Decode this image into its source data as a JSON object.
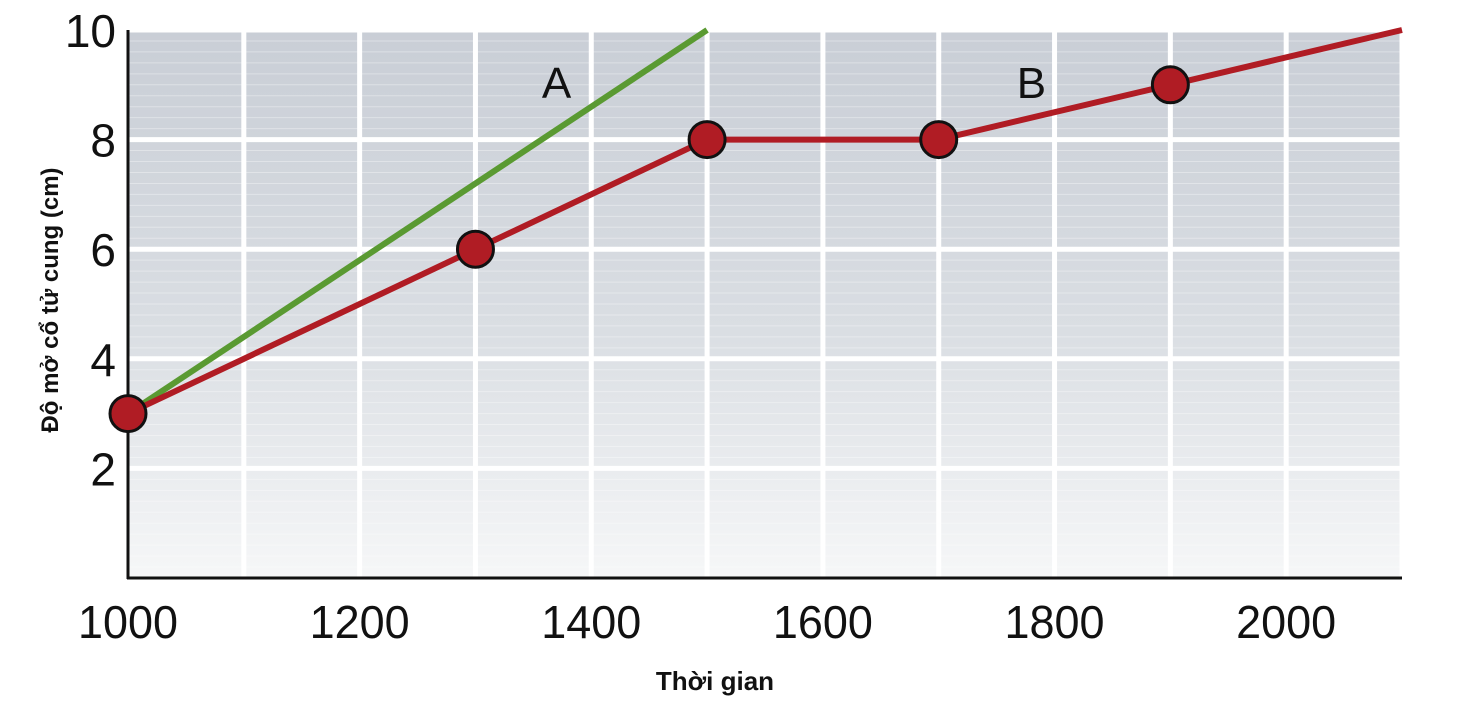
{
  "chart_data": {
    "type": "line",
    "title": "",
    "xlabel": "Thời gian",
    "ylabel": "Độ mở cổ tử cung (cm)",
    "xlim": [
      1000,
      2100
    ],
    "ylim": [
      0,
      10
    ],
    "x_ticks": [
      1000,
      1200,
      1400,
      1600,
      1800,
      2000
    ],
    "x_tick_labels": [
      "1000",
      "1200",
      "1400",
      "1600",
      "1800",
      "2000"
    ],
    "y_ticks": [
      2,
      4,
      6,
      8,
      10
    ],
    "y_tick_labels": [
      "2",
      "4",
      "6",
      "8",
      "10"
    ],
    "grid": true,
    "legend": "none",
    "series": [
      {
        "name": "A",
        "color": "#5a9a32",
        "markers": false,
        "x": [
          1000,
          1500
        ],
        "y": [
          3,
          10
        ]
      },
      {
        "name": "B",
        "color": "#b01c24",
        "markers": true,
        "marker_x": [
          1000,
          1300,
          1500,
          1700,
          1900
        ],
        "marker_y": [
          3,
          6,
          8,
          8,
          9
        ],
        "x": [
          1000,
          1300,
          1500,
          1700,
          1900,
          2100
        ],
        "y": [
          3,
          6,
          8,
          8,
          9,
          10
        ]
      }
    ]
  }
}
